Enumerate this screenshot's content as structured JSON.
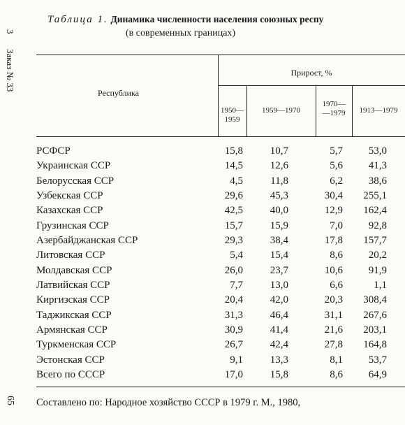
{
  "header": {
    "label": "Таблица 1.",
    "title": "Динамика численности населения союзных респу",
    "subtitle": "(в современных границах)"
  },
  "margin": {
    "mark": "3",
    "order": "Заказ № 33",
    "page": "65"
  },
  "table": {
    "header": {
      "republic": "Республика",
      "group": "Прирост, %",
      "columns": [
        "1950—1959",
        "1959—1970",
        "1970—\n—1979",
        "1913—1979"
      ]
    },
    "rows": [
      [
        "РСФСР",
        "15,8",
        "10,7",
        "5,7",
        "53,0"
      ],
      [
        "Украинская ССР",
        "14,5",
        "12,6",
        "5,6",
        "41,3"
      ],
      [
        "Белорусская ССР",
        "4,5",
        "11,8",
        "6,2",
        "38,6"
      ],
      [
        "Узбекская ССР",
        "29,6",
        "45,3",
        "30,4",
        "255,1"
      ],
      [
        "Казахская ССР",
        "42,5",
        "40,0",
        "12,9",
        "162,4"
      ],
      [
        "Грузинская ССР",
        "15,7",
        "15,9",
        "7,0",
        "92,8"
      ],
      [
        "Азербайджанская ССР",
        "29,3",
        "38,4",
        "17,8",
        "157,7"
      ],
      [
        "Литовская ССР",
        "5,4",
        "15,4",
        "8,6",
        "20,2"
      ],
      [
        "Молдавская ССР",
        "26,0",
        "23,7",
        "10,6",
        "91,9"
      ],
      [
        "Латвийская ССР",
        "7,7",
        "13,0",
        "6,6",
        "1,1"
      ],
      [
        "Киргизская ССР",
        "20,4",
        "42,0",
        "20,3",
        "308,4"
      ],
      [
        "Таджикская ССР",
        "31,3",
        "46,4",
        "31,1",
        "267,6"
      ],
      [
        "Армянская ССР",
        "30,9",
        "41,4",
        "21,6",
        "203,1"
      ],
      [
        "Туркменская ССР",
        "26,7",
        "42,4",
        "27,8",
        "164,8"
      ],
      [
        "Эстонская ССР",
        "9,1",
        "13,3",
        "8,1",
        "53,7"
      ],
      [
        "Всего по СССР",
        "17,0",
        "15,8",
        "8,6",
        "64,9"
      ]
    ]
  },
  "footer": {
    "source": "Составлено по: Народное хозяйство СССР в 1979 г. М., 1980,"
  }
}
